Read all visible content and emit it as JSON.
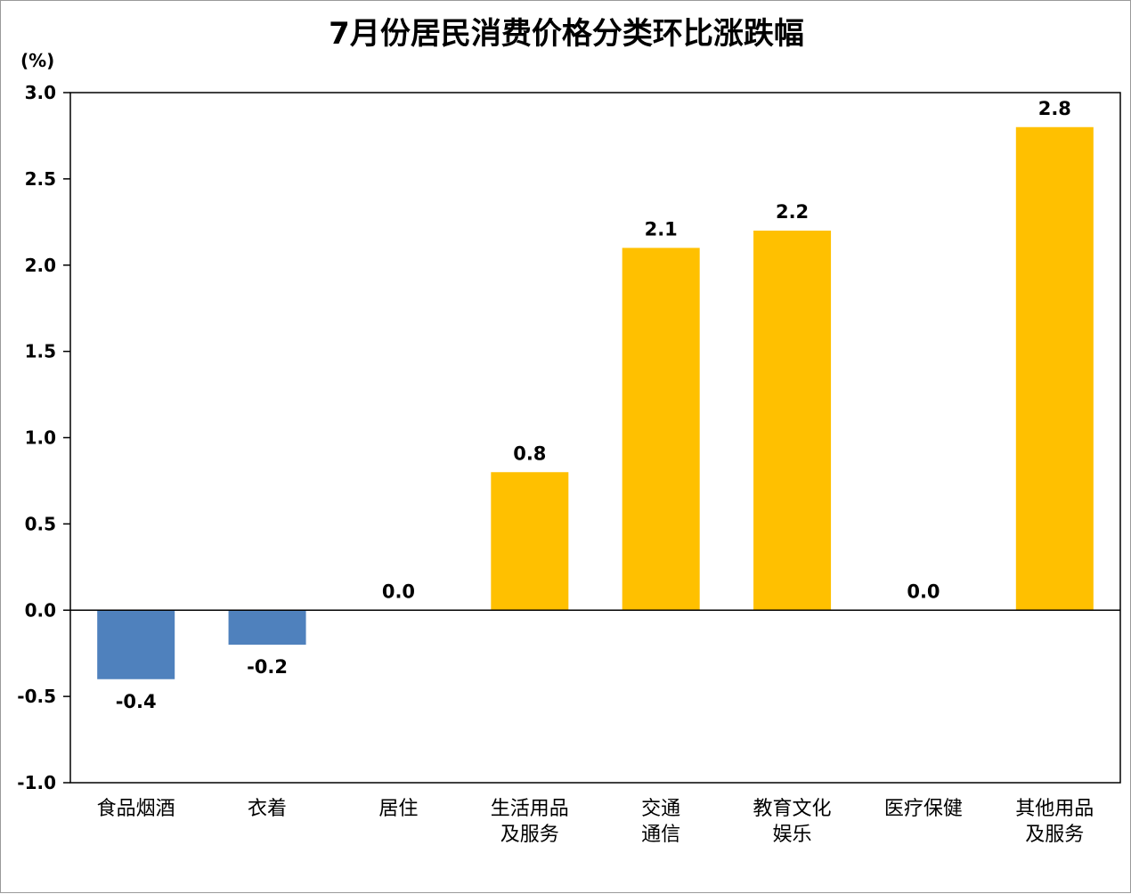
{
  "chart_data": {
    "type": "bar",
    "title": "7月份居民消费价格分类环比涨跌幅",
    "ylabel": "(%)",
    "ylim": [
      -1.0,
      3.0
    ],
    "yticks": [
      "3.0",
      "2.5",
      "2.0",
      "1.5",
      "1.0",
      "0.5",
      "0.0",
      "-0.5",
      "-1.0"
    ],
    "categories": [
      [
        "食品烟酒"
      ],
      [
        "衣着"
      ],
      [
        "居住"
      ],
      [
        "生活用品",
        "及服务"
      ],
      [
        "交通",
        "通信"
      ],
      [
        "教育文化",
        "娱乐"
      ],
      [
        "医疗保健"
      ],
      [
        "其他用品",
        "及服务"
      ]
    ],
    "values": [
      -0.4,
      -0.2,
      0.0,
      0.8,
      2.1,
      2.2,
      0.0,
      2.8
    ],
    "value_labels": [
      "-0.4",
      "-0.2",
      "0.0",
      "0.8",
      "2.1",
      "2.2",
      "0.0",
      "2.8"
    ],
    "grid": false,
    "colors": {
      "positive": "#ffc000",
      "negative": "#4f81bd",
      "axis": "#000000"
    }
  }
}
